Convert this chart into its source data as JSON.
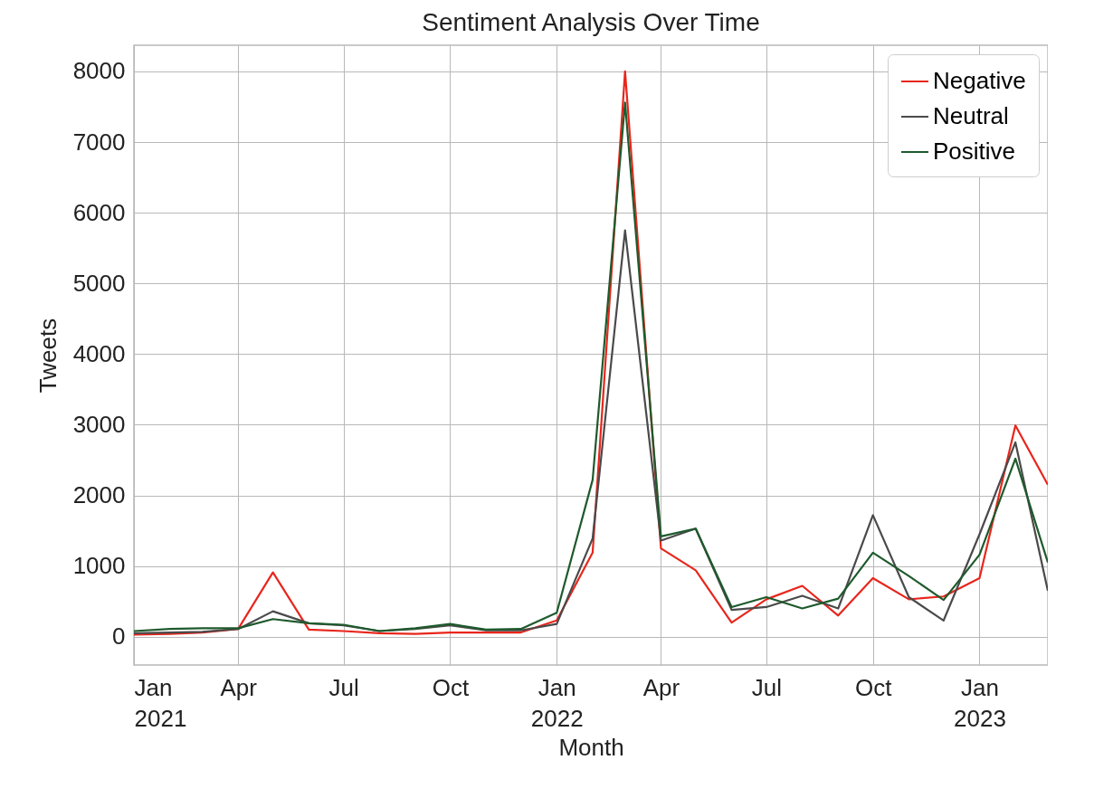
{
  "chart_data": {
    "type": "line",
    "title": "Sentiment Analysis Over Time",
    "xlabel": "Month",
    "ylabel": "Tweets",
    "x": [
      "2021-01",
      "2021-02",
      "2021-03",
      "2021-04",
      "2021-05",
      "2021-06",
      "2021-07",
      "2021-08",
      "2021-09",
      "2021-10",
      "2021-11",
      "2021-12",
      "2022-01",
      "2022-02",
      "2022-03",
      "2022-04",
      "2022-05",
      "2022-06",
      "2022-07",
      "2022-08",
      "2022-09",
      "2022-10",
      "2022-11",
      "2022-12",
      "2023-01",
      "2023-02",
      "2023-03"
    ],
    "series": [
      {
        "name": "Negative",
        "color": "#e8261c",
        "values": [
          30,
          40,
          60,
          110,
          910,
          100,
          80,
          50,
          40,
          60,
          60,
          60,
          230,
          1190,
          8000,
          1250,
          940,
          200,
          530,
          720,
          300,
          830,
          530,
          570,
          830,
          2990,
          2150
        ]
      },
      {
        "name": "Neutral",
        "color": "#4a4a4a",
        "values": [
          50,
          60,
          70,
          110,
          360,
          190,
          160,
          80,
          110,
          160,
          90,
          90,
          180,
          1390,
          5750,
          1360,
          1530,
          380,
          420,
          580,
          400,
          1720,
          560,
          230,
          1450,
          2750,
          650
        ]
      },
      {
        "name": "Positive",
        "color": "#1e5a2c",
        "values": [
          80,
          110,
          120,
          120,
          250,
          190,
          170,
          80,
          120,
          180,
          100,
          110,
          340,
          2220,
          7560,
          1420,
          1530,
          420,
          560,
          400,
          540,
          1190,
          860,
          520,
          1160,
          2520,
          1050
        ]
      }
    ],
    "xlim": [
      "2021-01",
      "2023-03"
    ],
    "xticks": [
      {
        "value": "2021-01",
        "label": "Jan\n2021"
      },
      {
        "value": "2021-04",
        "label": "Apr"
      },
      {
        "value": "2021-07",
        "label": "Jul"
      },
      {
        "value": "2021-10",
        "label": "Oct"
      },
      {
        "value": "2022-01",
        "label": "Jan\n2022"
      },
      {
        "value": "2022-04",
        "label": "Apr"
      },
      {
        "value": "2022-07",
        "label": "Jul"
      },
      {
        "value": "2022-10",
        "label": "Oct"
      },
      {
        "value": "2023-01",
        "label": "Jan\n2023"
      }
    ],
    "ylim": [
      -400,
      8370
    ],
    "yticks": [
      0,
      1000,
      2000,
      3000,
      4000,
      5000,
      6000,
      7000,
      8000
    ],
    "grid": true,
    "legend": "top right"
  }
}
